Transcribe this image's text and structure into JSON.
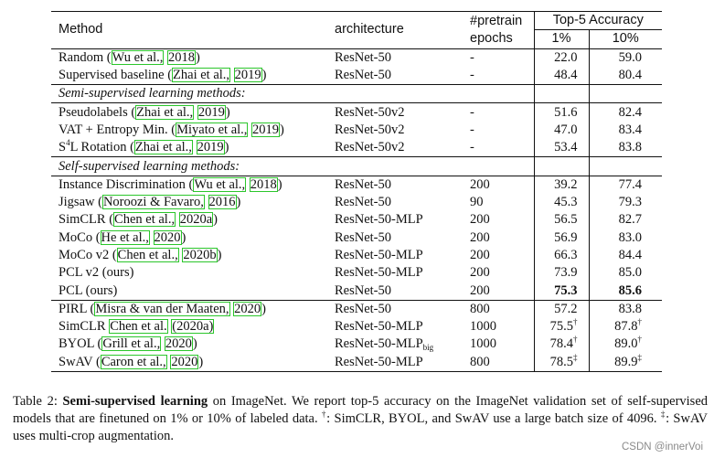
{
  "table": {
    "headers": {
      "method": "Method",
      "architecture": "architecture",
      "epochs_line1": "#pretrain",
      "epochs_line2": "epochs",
      "accuracy_group": "Top-5 Accuracy",
      "acc1": "1%",
      "acc10": "10%"
    },
    "baselines": [
      {
        "pre": "Random (",
        "cite": [
          "Wu et al.,",
          "2018"
        ],
        "post": ")",
        "arch": "ResNet-50",
        "epochs": "-",
        "acc1": "22.0",
        "acc10": "59.0"
      },
      {
        "pre": "Supervised baseline (",
        "cite": [
          "Zhai et al.,",
          "2019"
        ],
        "post": ")",
        "arch": "ResNet-50",
        "epochs": "-",
        "acc1": "48.4",
        "acc10": "80.4"
      }
    ],
    "semi_title": "Semi-supervised learning methods:",
    "semi": [
      {
        "pre": "Pseudolabels (",
        "cite": [
          "Zhai et al.,",
          "2019"
        ],
        "post": ")",
        "arch": "ResNet-50v2",
        "epochs": "-",
        "acc1": "51.6",
        "acc10": "82.4"
      },
      {
        "pre": "VAT + Entropy Min. (",
        "cite": [
          "Miyato et al.,",
          "2019"
        ],
        "post": ")",
        "arch": "ResNet-50v2",
        "epochs": "-",
        "acc1": "47.0",
        "acc10": "83.4"
      },
      {
        "pre": "L Rotation (",
        "cite": [
          "Zhai et al.,",
          "2019"
        ],
        "post": ")",
        "arch": "ResNet-50v2",
        "epochs": "-",
        "acc1": "53.4",
        "acc10": "83.8"
      }
    ],
    "semi_prefix_base": "S",
    "semi_prefix_sup": "4",
    "self_title": "Self-supervised learning methods:",
    "self": [
      {
        "pre": "Instance Discrimination (",
        "cite": [
          "Wu et al.,",
          "2018"
        ],
        "post": ")",
        "arch": "ResNet-50",
        "epochs": "200",
        "acc1": "39.2",
        "acc10": "77.4"
      },
      {
        "pre": "Jigsaw (",
        "cite": [
          "Noroozi & Favaro,",
          "2016"
        ],
        "post": ")",
        "arch": "ResNet-50",
        "epochs": "90",
        "acc1": "45.3",
        "acc10": "79.3"
      },
      {
        "pre": "SimCLR (",
        "cite": [
          "Chen et al.,",
          "2020a"
        ],
        "post": ")",
        "arch": "ResNet-50-MLP",
        "epochs": "200",
        "acc1": "56.5",
        "acc10": "82.7"
      },
      {
        "pre": "MoCo (",
        "cite": [
          "He et al.,",
          "2020"
        ],
        "post": ")",
        "arch": "ResNet-50",
        "epochs": "200",
        "acc1": "56.9",
        "acc10": "83.0"
      },
      {
        "pre": "MoCo v2 (",
        "cite": [
          "Chen et al.,",
          "2020b"
        ],
        "post": ")",
        "arch": "ResNet-50-MLP",
        "epochs": "200",
        "acc1": "66.3",
        "acc10": "84.4"
      },
      {
        "pre": "PCL v2 (ours)",
        "cite": [],
        "post": "",
        "arch": "ResNet-50-MLP",
        "epochs": "200",
        "acc1": "73.9",
        "acc10": "85.0"
      },
      {
        "pre": "PCL (ours)",
        "cite": [],
        "post": "",
        "arch": "ResNet-50",
        "epochs": "200",
        "acc1": "75.3",
        "acc10": "85.6"
      }
    ],
    "large": [
      {
        "pre": "PIRL (",
        "cite": [
          "Misra & van der Maaten,",
          "2020"
        ],
        "post": ")",
        "arch": "ResNet-50",
        "arch_sub": "",
        "epochs": "800",
        "acc1": "57.2",
        "acc1_mark": "",
        "acc10": "83.8",
        "acc10_mark": ""
      },
      {
        "pre": "SimCLR ",
        "cite": [
          "Chen et al.",
          "(2020a)"
        ],
        "post": "",
        "arch": "ResNet-50-MLP",
        "arch_sub": "",
        "epochs": "1000",
        "acc1": "75.5",
        "acc1_mark": "†",
        "acc10": "87.8",
        "acc10_mark": "†"
      },
      {
        "pre": "BYOL (",
        "cite": [
          "Grill et al.,",
          "2020"
        ],
        "post": ")",
        "arch": "ResNet-50-MLP",
        "arch_sub": "big",
        "epochs": "1000",
        "acc1": "78.4",
        "acc1_mark": "†",
        "acc10": "89.0",
        "acc10_mark": "†"
      },
      {
        "pre": "SwAV (",
        "cite": [
          "Caron et al.,",
          "2020"
        ],
        "post": ")",
        "arch": "ResNet-50-MLP",
        "arch_sub": "",
        "epochs": "800",
        "acc1": "78.5",
        "acc1_mark": "‡",
        "acc10": "89.9",
        "acc10_mark": "‡"
      }
    ]
  },
  "caption": {
    "prefix": "Table 2: ",
    "lead": "Semi-supervised learning",
    "text1": " on ImageNet. We report top-5 accuracy on the ImageNet validation set of self-supervised models that are finetuned on 1% or 10% of labeled data. ",
    "mark1": "†",
    "text2": ": SimCLR, BYOL, and SwAV use a large batch size of 4096. ",
    "mark2": "‡",
    "text3": ": SwAV uses multi-crop augmentation."
  },
  "watermark": "CSDN @innerVoi",
  "colors": {
    "citation_box": "#2bc62b",
    "text": "#111111",
    "watermark": "#8a8a8a"
  }
}
